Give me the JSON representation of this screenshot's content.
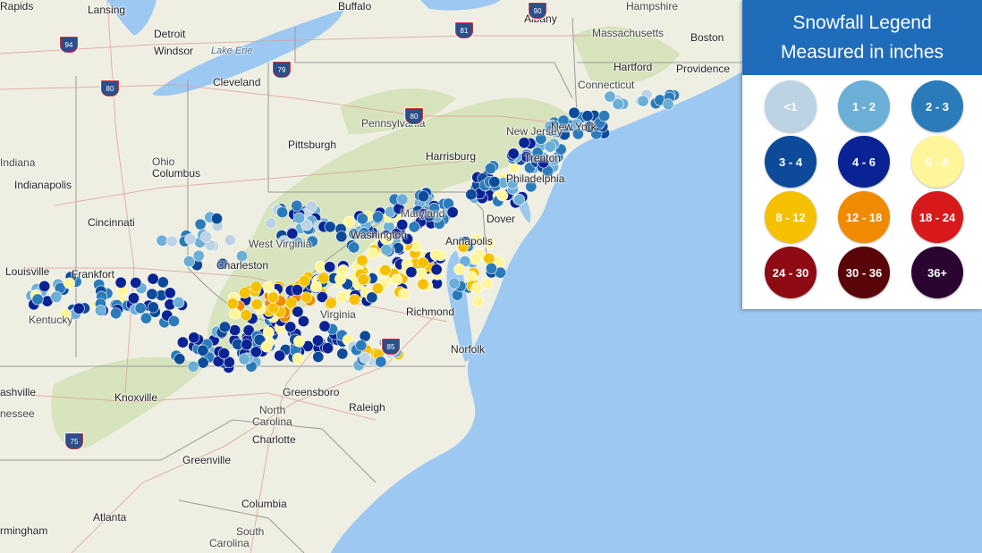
{
  "legend": {
    "title_line1": "Snowfall Legend",
    "title_line2": "Measured in inches",
    "items": [
      {
        "label": "<1",
        "color": "#bcd3e4"
      },
      {
        "label": "1 - 2",
        "color": "#6baed6"
      },
      {
        "label": "2 - 3",
        "color": "#2b7bba"
      },
      {
        "label": "3 - 4",
        "color": "#0d4a9a"
      },
      {
        "label": "4 - 6",
        "color": "#0a2394"
      },
      {
        "label": "6 - 8",
        "color": "#fff59a"
      },
      {
        "label": "8 - 12",
        "color": "#f5c000"
      },
      {
        "label": "12 - 18",
        "color": "#f08a00"
      },
      {
        "label": "18 - 24",
        "color": "#d7191c"
      },
      {
        "label": "24 - 30",
        "color": "#8e0b14"
      },
      {
        "label": "30 - 36",
        "color": "#5a0509"
      },
      {
        "label": "36+",
        "color": "#2a0530"
      }
    ]
  },
  "map": {
    "ocean_color": "#9cc8f2",
    "land_color": "#eeefe2",
    "cities": [
      "Lansing",
      "Detroit",
      "Windsor",
      "Buffalo",
      "Rapids",
      "New York",
      "Albany",
      "Hampshire",
      "Massachusetts",
      "Boston",
      "Hartford",
      "Providence",
      "Connecticut",
      "Cleveland",
      "Pennsylvania",
      "Pittsburgh",
      "Harrisburg",
      "New Jersey",
      "Trenton",
      "Philadelphia",
      "Ohio",
      "Columbus",
      "Indiana",
      "Indianapolis",
      "Cincinnati",
      "Maryland",
      "Dover",
      "Washington",
      "Annapolis",
      "West Virginia",
      "Charleston",
      "Louisville",
      "Frankfort",
      "Kentucky",
      "Virginia",
      "Richmond",
      "Norfolk",
      "Nashville",
      "Tennessee",
      "Knoxville",
      "Greensboro",
      "Raleigh",
      "North Carolina",
      "Charlotte",
      "Greenville",
      "Columbia",
      "Atlanta",
      "South Carolina",
      "Birmingham"
    ],
    "water_labels": [
      "Lake Erie"
    ],
    "interstates": [
      "94",
      "80",
      "79",
      "90",
      "81",
      "80",
      "85",
      "75"
    ]
  }
}
